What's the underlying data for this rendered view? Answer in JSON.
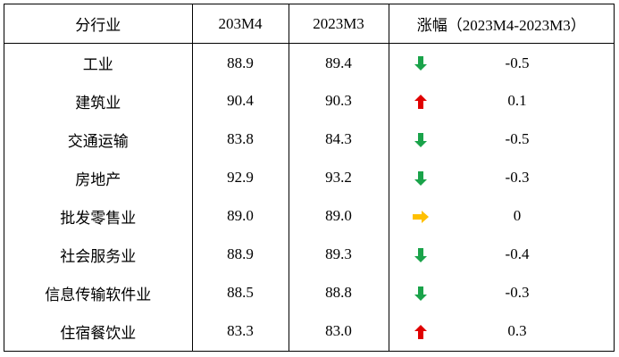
{
  "header": {
    "industry": "分行业",
    "col_a": "203M4",
    "col_b": "2023M3",
    "change_cjk": "涨幅",
    "change_range": "（2023M4-2023M3）"
  },
  "colors": {
    "up": "#e00000",
    "down": "#1aa34a",
    "flat": "#ffc000"
  },
  "rows": [
    {
      "industry": "工业",
      "a": "88.9",
      "b": "89.4",
      "trend": "down-arrow-icon",
      "change": "-0.5"
    },
    {
      "industry": "建筑业",
      "a": "90.4",
      "b": "90.3",
      "trend": "up-arrow-icon",
      "change": "0.1"
    },
    {
      "industry": "交通运输",
      "a": "83.8",
      "b": "84.3",
      "trend": "down-arrow-icon",
      "change": "-0.5"
    },
    {
      "industry": "房地产",
      "a": "92.9",
      "b": "93.2",
      "trend": "down-arrow-icon",
      "change": "-0.3"
    },
    {
      "industry": "批发零售业",
      "a": "89.0",
      "b": "89.0",
      "trend": "right-arrow-icon",
      "change": "0"
    },
    {
      "industry": "社会服务业",
      "a": "88.9",
      "b": "89.3",
      "trend": "down-arrow-icon",
      "change": "-0.4"
    },
    {
      "industry": "信息传输软件业",
      "a": "88.5",
      "b": "88.8",
      "trend": "down-arrow-icon",
      "change": "-0.3"
    },
    {
      "industry": "住宿餐饮业",
      "a": "83.3",
      "b": "83.0",
      "trend": "up-arrow-icon",
      "change": "0.3"
    }
  ]
}
